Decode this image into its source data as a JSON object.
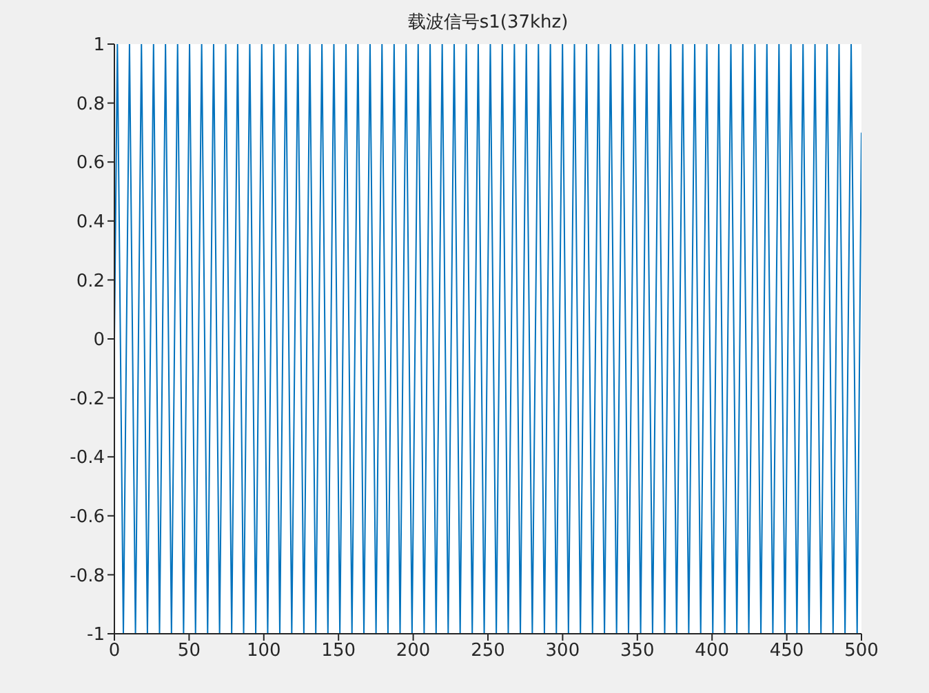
{
  "chart_data": {
    "type": "line",
    "title": "载波信号s1(37khz)",
    "color": "#0072bd",
    "marker": "none",
    "line_style": "solid",
    "grid": false,
    "xlim": [
      0,
      500
    ],
    "ylim": [
      -1,
      1
    ],
    "xticks": [
      0,
      50,
      100,
      150,
      200,
      250,
      300,
      350,
      400,
      450,
      500
    ],
    "yticks": [
      -1,
      -0.8,
      -0.6,
      -0.4,
      -0.2,
      0,
      0.2,
      0.4,
      0.6,
      0.8,
      1
    ],
    "x": [
      0,
      2.0,
      6.0,
      10.1,
      14.1,
      18.1,
      22.1,
      26.2,
      30.2,
      34.2,
      38.2,
      42.3,
      46.3,
      50.3,
      54.3,
      58.4,
      62.4,
      66.4,
      70.4,
      74.5,
      78.5,
      82.5,
      86.5,
      90.6,
      94.6,
      98.6,
      102.6,
      106.7,
      110.7,
      114.7,
      118.7,
      122.8,
      126.8,
      130.8,
      134.8,
      138.9,
      142.9,
      146.9,
      150.9,
      155.0,
      159.0,
      163.0,
      167.0,
      171.1,
      175.1,
      179.1,
      183.1,
      187.2,
      191.2,
      195.2,
      199.2,
      203.3,
      207.3,
      211.3,
      215.3,
      219.4,
      223.4,
      227.4,
      231.4,
      235.5,
      239.5,
      243.5,
      247.5,
      251.6,
      255.6,
      259.6,
      263.6,
      267.7,
      271.7,
      275.7,
      279.7,
      283.8,
      287.8,
      291.8,
      295.8,
      299.9,
      303.9,
      307.9,
      311.9,
      316.0,
      320.0,
      324.0,
      328.0,
      332.1,
      336.1,
      340.1,
      344.1,
      348.2,
      352.2,
      356.2,
      360.2,
      364.3,
      368.3,
      372.3,
      376.3,
      380.4,
      384.4,
      388.4,
      392.4,
      396.5,
      400.5,
      404.5,
      408.5,
      412.6,
      416.6,
      420.6,
      424.6,
      428.7,
      432.7,
      436.7,
      440.7,
      444.8,
      448.8,
      452.8,
      456.8,
      460.9,
      464.9,
      468.9,
      472.9,
      477.0,
      481.0,
      485.0,
      489.0,
      493.1,
      497.1,
      500
    ],
    "values": [
      0,
      1,
      -1,
      1,
      -1,
      1,
      -1,
      1,
      -1,
      1,
      -1,
      1,
      -1,
      1,
      -1,
      1,
      -1,
      1,
      -1,
      1,
      -1,
      1,
      -1,
      1,
      -1,
      1,
      -1,
      1,
      -1,
      1,
      -1,
      1,
      -1,
      1,
      -1,
      1,
      -1,
      1,
      -1,
      1,
      -1,
      1,
      -1,
      1,
      -1,
      1,
      -1,
      1,
      -1,
      1,
      -1,
      1,
      -1,
      1,
      -1,
      1,
      -1,
      1,
      -1,
      1,
      -1,
      1,
      -1,
      1,
      -1,
      1,
      -1,
      1,
      -1,
      1,
      -1,
      1,
      -1,
      1,
      -1,
      1,
      -1,
      1,
      -1,
      1,
      -1,
      1,
      -1,
      1,
      -1,
      1,
      -1,
      1,
      -1,
      1,
      -1,
      1,
      -1,
      1,
      -1,
      1,
      -1,
      1,
      -1,
      1,
      -1,
      1,
      -1,
      1,
      -1,
      1,
      -1,
      1,
      -1,
      1,
      -1,
      1,
      -1,
      1,
      -1,
      1,
      -1,
      1,
      -1,
      1,
      -1,
      1,
      -1,
      1,
      -1,
      0.7
    ]
  }
}
